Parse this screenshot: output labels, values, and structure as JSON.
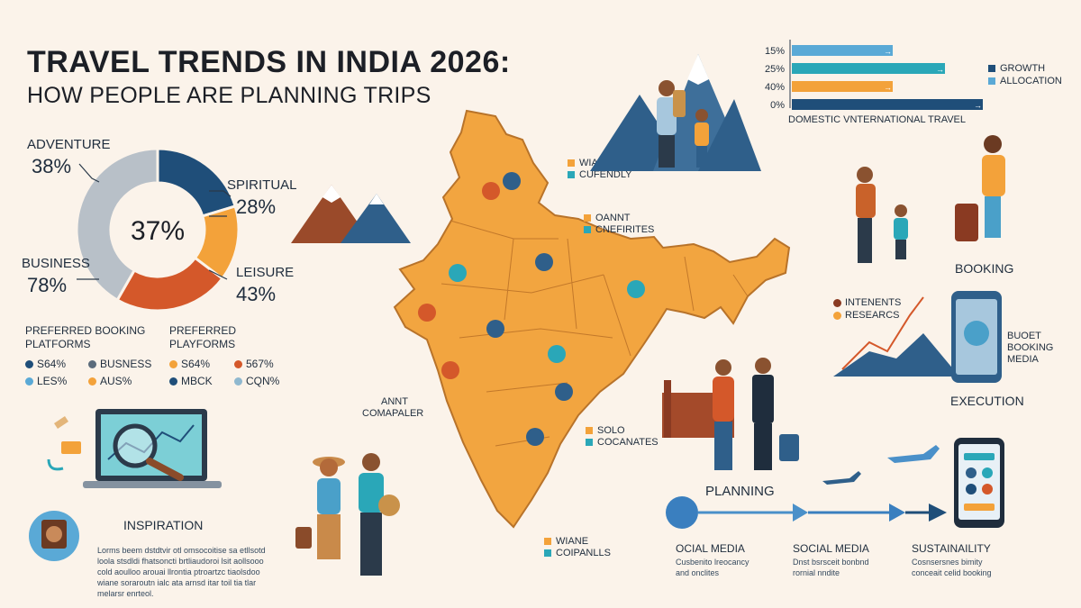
{
  "title": "TRAVEL TRENDS IN INDIA 2026:",
  "subtitle": "HOW PEOPLE ARE PLANNING TRIPS",
  "colors": {
    "navy": "#1f4e79",
    "orange": "#f3a23a",
    "rust": "#d4582a",
    "grey": "#b8c0c8",
    "teal": "#2aa7b8",
    "lightblue": "#5aa9d6",
    "map": "#f2a540",
    "bg": "#fbf3ea"
  },
  "chart_data": [
    {
      "type": "pie",
      "center_label": "37%",
      "slices": [
        {
          "label": "ADVENTURE",
          "value": 38,
          "value_label": "38%",
          "color": "#1f4e79"
        },
        {
          "label": "SPIRITUAL",
          "value": 28,
          "value_label": "28%",
          "color": "#f3a23a"
        },
        {
          "label": "LEISURE",
          "value": 43,
          "value_label": "43%",
          "color": "#d4582a"
        },
        {
          "label": "BUSINESS",
          "value": 78,
          "value_label": "78%",
          "color": "#b8c0c8"
        }
      ]
    },
    {
      "type": "bar",
      "orientation": "horizontal",
      "categories": [
        "15%",
        "25%",
        "40%",
        "0%"
      ],
      "values": [
        15,
        25,
        40,
        0
      ],
      "bar_colors": [
        "#5aa9d6",
        "#2aa7b8",
        "#f3a23a",
        "#1f4e79"
      ],
      "xlabel": "DOMESTIC VNTERNATIONAL TRAVEL",
      "legend": [
        {
          "name": "GROWTH",
          "color": "#1f4e79"
        },
        {
          "name": "ALLOCATION",
          "color": "#5aa9d6"
        }
      ],
      "legend_position": "right"
    }
  ],
  "booking": {
    "title1": "PREFERRED BOOKING",
    "title1b": "PLATFORMS",
    "title2": "PREFERRED",
    "title2b": "PLAYFORMS",
    "left_items": [
      {
        "label": "S64%",
        "color": "#1f4e79"
      },
      {
        "label": "BUSNESS",
        "color": "#5b6b7b"
      },
      {
        "label": "LES%",
        "color": "#5aa9d6"
      },
      {
        "label": "AUS%",
        "color": "#f3a23a"
      }
    ],
    "right_items": [
      {
        "label": "S64%",
        "color": "#f3a23a"
      },
      {
        "label": "567%",
        "color": "#d4582a"
      },
      {
        "label": "MBCK",
        "color": "#1f4e79"
      },
      {
        "label": "CQN%",
        "color": "#8fb8cf"
      }
    ]
  },
  "inspiration": {
    "title": "INSPIRATION",
    "text": [
      "Lorms beem dstdtvir otl omsocoitise sa etllsotd",
      "loola stsdldi fhatsoncti brtliaudoroi lsit aollsooo",
      "cold aoulloo arouai llrontia ptroartzc tiaolsdoo",
      "wiane soraroutn ialc ata arnsd itar toil tia tlar",
      "melarsr enrteol."
    ]
  },
  "map_labels": {
    "wiane_top": "WIANE",
    "cufendly": "CUFENDLY",
    "oannt": "OANNT",
    "cnefirites": "CNEFIRITES",
    "annt": "ANNT",
    "compaler": "COMAPALER",
    "solo": "SOLO",
    "cocanates": "COCANATES",
    "wiane_bottom": "WIANE",
    "coipanlls": "COIPANLLS"
  },
  "journey": {
    "booking": "BOOKING",
    "execution": "EXECUTION",
    "planning": "PLANNING",
    "intents": "INTENENTS",
    "researcs": "RESEARCS",
    "buoet": "BUOET",
    "booking_small": "BOOKING",
    "media": "MEDIA",
    "steps": [
      {
        "title": "OCIAL MEDIA",
        "line1": "Cusbenito lreocancy",
        "line2": "and onclites"
      },
      {
        "title": "SOCIAL MEDIA",
        "line1": "Dnst bsrsceit bonbnd",
        "line2": "rornial nndite"
      },
      {
        "title": "SUSTAINAILITY",
        "line1": "Cosnsersnes bimity",
        "line2": "conceait celid booking"
      }
    ]
  }
}
